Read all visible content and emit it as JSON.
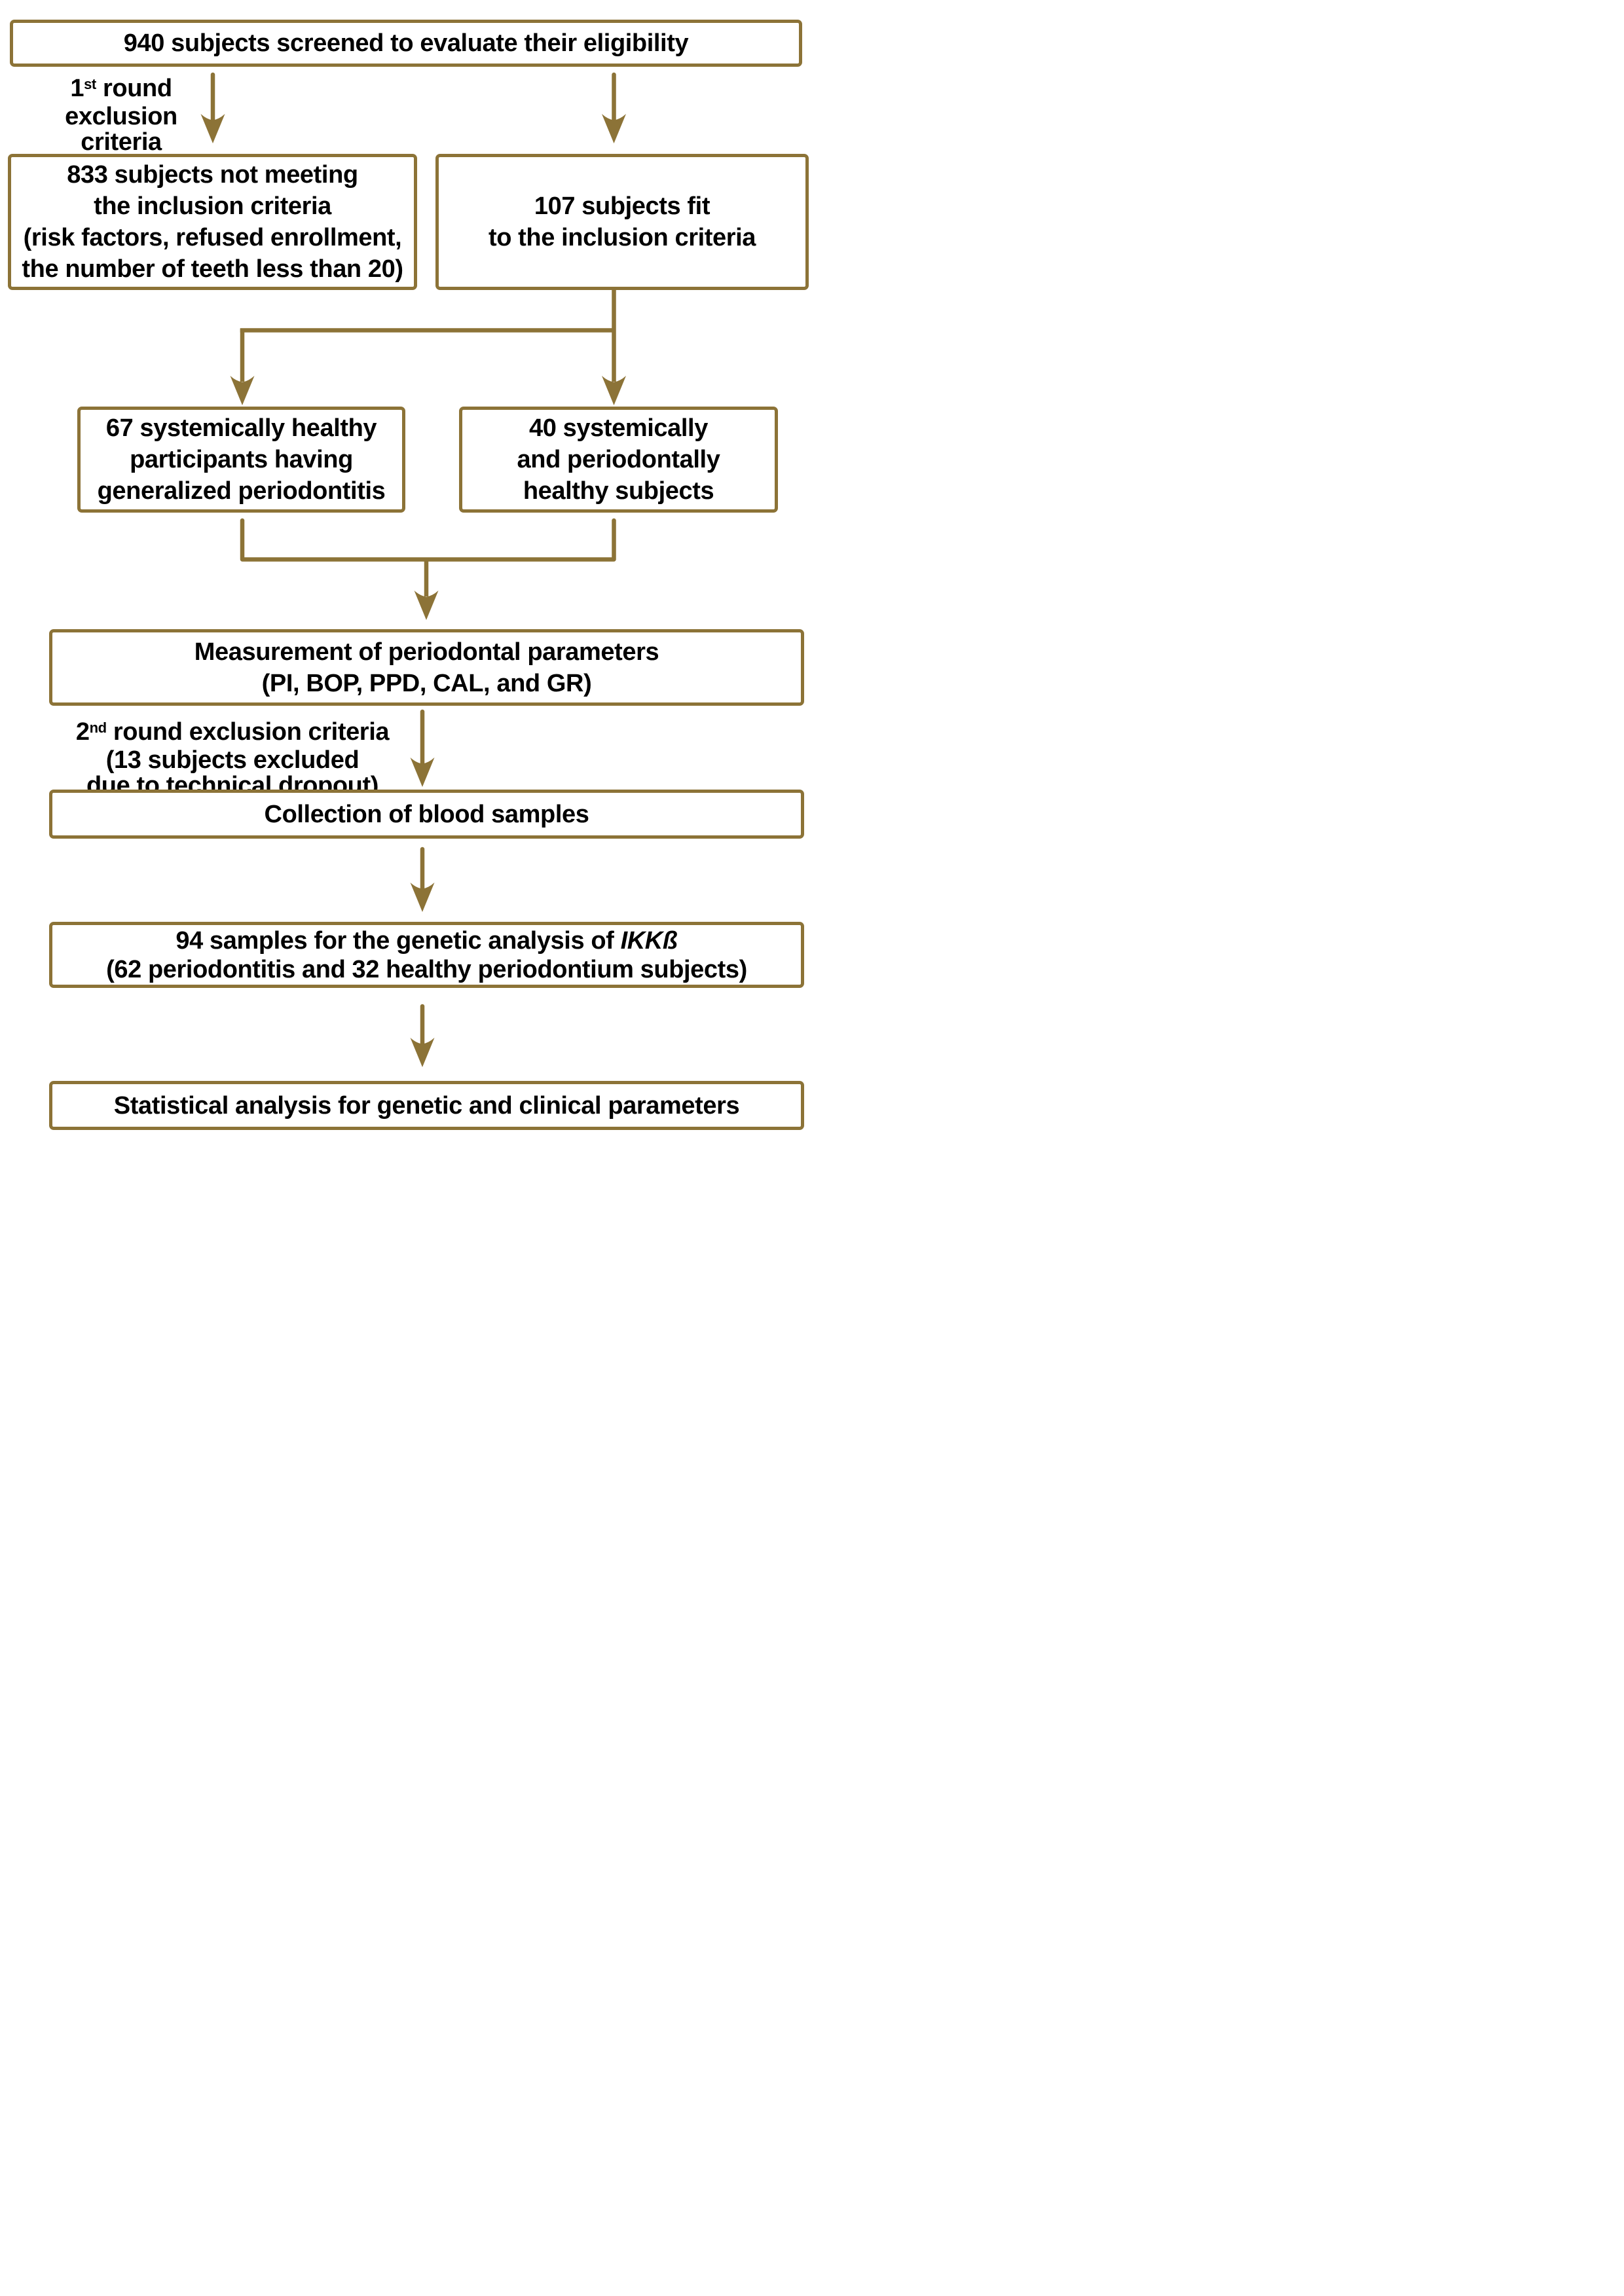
{
  "colors": {
    "gold": "#8C7337",
    "text": "#000000",
    "background": "#FFFFFF"
  },
  "nodes": {
    "box_940": {
      "lines": [
        [
          {
            "t": "940 subjects screened to evaluate their eligibility"
          }
        ]
      ]
    },
    "label_first": {
      "lines": [
        [
          {
            "t": "1"
          },
          {
            "t": "st",
            "sup": true
          },
          {
            "t": " round"
          }
        ],
        [
          {
            "t": "exclusion"
          }
        ],
        [
          {
            "t": "criteria"
          }
        ]
      ]
    },
    "box_833": {
      "lines": [
        [
          {
            "t": "833 subjects not meeting"
          }
        ],
        [
          {
            "t": "the inclusion criteria"
          }
        ],
        [
          {
            "t": "(risk factors, refused enrollment,"
          }
        ],
        [
          {
            "t": "the number of teeth less than 20)"
          }
        ]
      ]
    },
    "box_107": {
      "lines": [
        [
          {
            "t": "107 subjects fit"
          }
        ],
        [
          {
            "t": "to the inclusion criteria"
          }
        ]
      ]
    },
    "box_67": {
      "lines": [
        [
          {
            "t": "67 systemically healthy"
          }
        ],
        [
          {
            "t": "participants having"
          }
        ],
        [
          {
            "t": "generalized periodontitis"
          }
        ]
      ]
    },
    "box_40": {
      "lines": [
        [
          {
            "t": "40 systemically"
          }
        ],
        [
          {
            "t": "and periodontally"
          }
        ],
        [
          {
            "t": "healthy subjects"
          }
        ]
      ]
    },
    "box_measurement": {
      "lines": [
        [
          {
            "t": "Measurement of periodontal parameters"
          }
        ],
        [
          {
            "t": "(PI, BOP, PPD, CAL, and GR)"
          }
        ]
      ]
    },
    "label_second": {
      "lines": [
        [
          {
            "t": "2"
          },
          {
            "t": "nd",
            "sup": true
          },
          {
            "t": " round exclusion criteria"
          }
        ],
        [
          {
            "t": "(13 subjects excluded"
          }
        ],
        [
          {
            "t": "due to technical dropout)"
          }
        ]
      ]
    },
    "box_collection": {
      "lines": [
        [
          {
            "t": "Collection of blood samples"
          }
        ]
      ]
    },
    "box_94": {
      "lines": [
        [
          {
            "t": "94 samples for the genetic analysis of "
          },
          {
            "t": "IKKß",
            "italic": true
          }
        ],
        [
          {
            "t": "(62 periodontitis and 32 healthy periodontium subjects)"
          }
        ]
      ]
    },
    "box_statistical": {
      "lines": [
        [
          {
            "t": "Statistical analysis for genetic and clinical parameters"
          }
        ]
      ]
    }
  }
}
